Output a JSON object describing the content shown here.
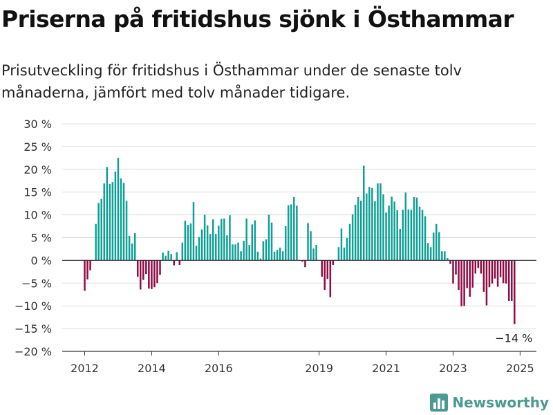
{
  "title": "Priserna på fritidshus sjönk i Östhammar",
  "subtitle": "Prisutveckling för fritidshus i Östhammar under de senaste tolv månaderna, jämfört med tolv månader tidigare.",
  "brand": {
    "name": "Newsworthy",
    "icon": "bar-chart-logo-icon",
    "color": "#4a9a92"
  },
  "chart_data": {
    "type": "bar",
    "title": "",
    "xlabel": "",
    "ylabel": "",
    "ylim": [
      -20,
      30
    ],
    "y_ticks": [
      {
        "value": 30,
        "label": "30 %"
      },
      {
        "value": 25,
        "label": "25 %"
      },
      {
        "value": 20,
        "label": "20 %"
      },
      {
        "value": 15,
        "label": "15 %"
      },
      {
        "value": 10,
        "label": "10 %"
      },
      {
        "value": 5,
        "label": "5 %"
      },
      {
        "value": 0,
        "label": "0 %"
      },
      {
        "value": -5,
        "label": "−5 %"
      },
      {
        "value": -10,
        "label": "−10 %"
      },
      {
        "value": -15,
        "label": "−15 %"
      },
      {
        "value": -20,
        "label": "−20 %"
      }
    ],
    "x_ticks": [
      {
        "year": 2012,
        "label": "2012"
      },
      {
        "year": 2014,
        "label": "2014"
      },
      {
        "year": 2016,
        "label": "2016"
      },
      {
        "year": 2019,
        "label": "2019"
      },
      {
        "year": 2021,
        "label": "2021"
      },
      {
        "year": 2023,
        "label": "2023"
      },
      {
        "year": 2025,
        "label": "2025"
      }
    ],
    "grid": true,
    "colors": {
      "positive": "#0e9f96",
      "negative": "#8e0b45",
      "grid": "#dddddd",
      "axis": "#333333"
    },
    "annotation": {
      "index": "last",
      "label": "−14 %"
    },
    "start_month": "2012-01",
    "values": [
      -6.7,
      -4.2,
      -2.2,
      null,
      8.0,
      12.6,
      13.5,
      16.9,
      20.5,
      16.8,
      17.2,
      19.5,
      22.5,
      18.0,
      17.0,
      13.1,
      5.4,
      3.7,
      6.0,
      -3.6,
      -6.4,
      -4.3,
      -3.0,
      -6.2,
      -6.3,
      -5.9,
      -5.0,
      -3.2,
      1.7,
      1.0,
      2.1,
      1.4,
      -1.1,
      1.8,
      -1.0,
      3.9,
      8.7,
      7.8,
      8.1,
      12.8,
      3.2,
      5.1,
      6.8,
      10.0,
      7.7,
      5.8,
      9.0,
      5.8,
      7.6,
      9.1,
      9.2,
      5.5,
      9.9,
      3.5,
      3.5,
      3.9,
      2.0,
      4.3,
      9.2,
      3.4,
      7.9,
      8.8,
      1.9,
      0.4,
      4.2,
      4.6,
      10.0,
      8.3,
      1.9,
      2.3,
      2.8,
      2.0,
      7.5,
      12.1,
      12.3,
      13.9,
      12.0,
      null,
      -0.3,
      -1.5,
      8.2,
      6.4,
      2.6,
      3.4,
      null,
      -3.6,
      -6.5,
      -4.1,
      -8.1,
      -1.0,
      null,
      2.9,
      7.0,
      2.8,
      4.9,
      8.0,
      10.1,
      12.2,
      13.9,
      13.1,
      20.8,
      14.7,
      16.1,
      15.9,
      13.0,
      16.9,
      16.9,
      14.5,
      10.5,
      12.0,
      14.0,
      12.9,
      11.0,
      6.9,
      11.1,
      14.9,
      11.2,
      11.1,
      13.9,
      13.8,
      11.8,
      11.1,
      9.7,
      3.8,
      2.9,
      6.1,
      8.0,
      6.2,
      2.0,
      2.0,
      0.5,
      -0.8,
      -5.1,
      -3.1,
      -6.5,
      -10.1,
      -10.0,
      -6.1,
      -8.0,
      -6.0,
      -2.9,
      -1.7,
      -2.9,
      -6.9,
      -9.9,
      -5.9,
      -5.1,
      -4.0,
      -5.8,
      -3.7,
      -5.0,
      -5.1,
      -8.9,
      -8.9,
      -14.0
    ]
  }
}
